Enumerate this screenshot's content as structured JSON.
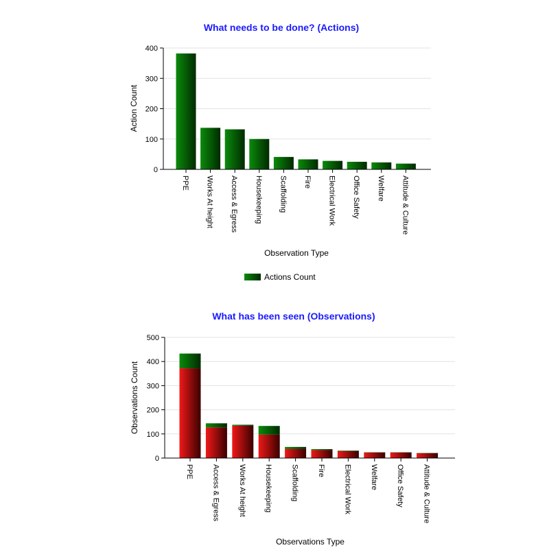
{
  "chart_data": [
    {
      "type": "bar",
      "title": "What needs to be done? (Actions)",
      "xlabel": "Observation Type",
      "ylabel": "Action Count",
      "ylim": [
        0,
        400
      ],
      "yticks": [
        "0",
        "100",
        "200",
        "300",
        "400"
      ],
      "grid": true,
      "legend_position": "bottom-center",
      "categories": [
        "PPE",
        "Works At height",
        "Access & Egress",
        "Housekeeping",
        "Scaffolding",
        "Fire",
        "Electrical Work",
        "Office Safety",
        "Welfare",
        "Attitude & Culture"
      ],
      "series": [
        {
          "name": "Actions Count",
          "color": "#006400",
          "values": [
            382,
            137,
            132,
            100,
            41,
            33,
            28,
            25,
            23,
            19
          ]
        }
      ]
    },
    {
      "type": "bar",
      "stacked": true,
      "title": "What has been seen (Observations)",
      "xlabel": "Observations Type",
      "ylabel": "Observations Count",
      "ylim": [
        0,
        500
      ],
      "yticks": [
        "0",
        "100",
        "200",
        "300",
        "400",
        "500"
      ],
      "grid": true,
      "categories": [
        "PPE",
        "Access & Egress",
        "Works At height",
        "Housekeeping",
        "Scaffolding",
        "Fire",
        "Electrical Work",
        "Welfare",
        "Office Safety",
        "Attitude & Culture"
      ],
      "series": [
        {
          "color": "#d40000",
          "values": [
            372,
            127,
            134,
            97,
            38,
            33,
            29,
            23,
            23,
            20
          ]
        },
        {
          "color": "#006400",
          "values": [
            61,
            17,
            4,
            36,
            8,
            4,
            2,
            1,
            1,
            1
          ]
        }
      ]
    }
  ]
}
